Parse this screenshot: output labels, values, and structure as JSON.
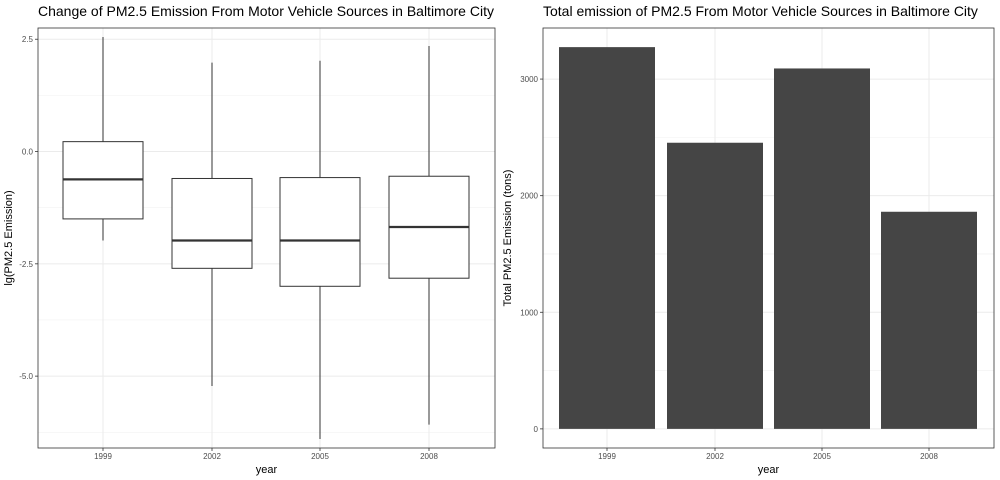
{
  "chart_data": [
    {
      "type": "box",
      "title": "Change of PM2.5 Emission From Motor Vehicle Sources in Baltimore City",
      "xlabel": "year",
      "ylabel": "lg(PM2.5 Emission)",
      "categories": [
        "1999",
        "2002",
        "2005",
        "2008"
      ],
      "boxes": [
        {
          "category": "1999",
          "whisker_low": -1.98,
          "q1": -1.5,
          "median": -0.62,
          "q3": 0.22,
          "whisker_high": 2.55
        },
        {
          "category": "2002",
          "whisker_low": -5.22,
          "q1": -2.6,
          "median": -1.98,
          "q3": -0.6,
          "whisker_high": 1.98
        },
        {
          "category": "2005",
          "whisker_low": -6.4,
          "q1": -3.0,
          "median": -1.98,
          "q3": -0.58,
          "whisker_high": 2.02
        },
        {
          "category": "2008",
          "whisker_low": -6.08,
          "q1": -2.82,
          "median": -1.68,
          "q3": -0.55,
          "whisker_high": 2.35
        }
      ],
      "yticks": [
        2.5,
        0.0,
        -2.5,
        -5.0
      ],
      "ytick_labels": [
        "2.5",
        "0.0",
        "-2.5",
        "-5.0"
      ],
      "ylim": [
        -6.6,
        2.75
      ],
      "grid": true,
      "legend": "none",
      "box_fill": "#ffffff",
      "line_color": "#333333"
    },
    {
      "type": "bar",
      "title": "Total emission of PM2.5 From Motor Vehicle Sources in Baltimore City",
      "xlabel": "year",
      "ylabel": "Total PM2.5 Emission (tons)",
      "categories": [
        "1999",
        "2002",
        "2005",
        "2008"
      ],
      "values": [
        3274,
        2454,
        3091,
        1862
      ],
      "yticks": [
        0,
        1000,
        2000,
        3000
      ],
      "ytick_labels": [
        "0",
        "1000",
        "2000",
        "3000"
      ],
      "ylim": [
        -164,
        3438
      ],
      "grid": true,
      "legend": "none",
      "bar_color": "#454545"
    }
  ]
}
